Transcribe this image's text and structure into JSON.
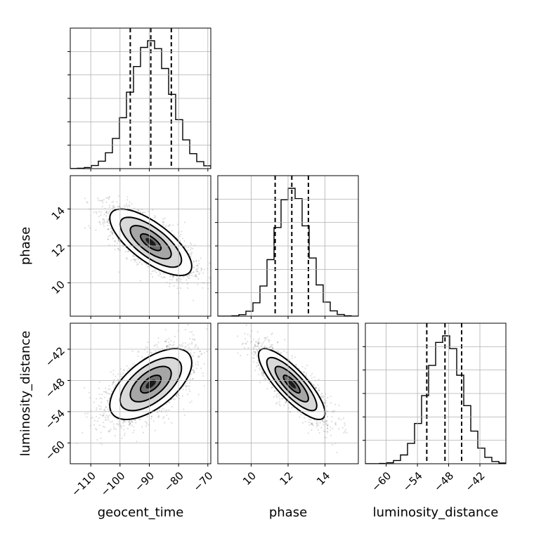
{
  "chart_data": {
    "type": "corner",
    "parameters": [
      "geocent_time",
      "phase",
      "luminosity_distance"
    ],
    "ranges": {
      "geocent_time": [
        -117,
        -69
      ],
      "phase": [
        8.2,
        15.8
      ],
      "luminosity_distance": [
        -64,
        -37
      ]
    },
    "ticks": {
      "geocent_time": [
        -110,
        -100,
        -90,
        -80,
        -70
      ],
      "phase": [
        10,
        12,
        14
      ],
      "luminosity_distance": [
        -60,
        -54,
        -48,
        -42
      ]
    },
    "tick_labels": {
      "geocent_time": [
        "−110",
        "−100",
        "−90",
        "−80",
        "−70"
      ],
      "phase": [
        "10",
        "12",
        "14"
      ],
      "luminosity_distance": [
        "−60",
        "−54",
        "−48",
        "−42"
      ]
    },
    "quantiles": {
      "geocent_time": [
        -96.5,
        -89.5,
        -82.5
      ],
      "phase": [
        11.3,
        12.2,
        13.1
      ],
      "luminosity_distance": [
        -52.2,
        -48.7,
        -45.5
      ]
    },
    "means": {
      "geocent_time": -89.5,
      "phase": 12.2,
      "luminosity_distance": -48.7
    },
    "std": {
      "geocent_time": 7.0,
      "phase": 0.9,
      "luminosity_distance": 3.4
    },
    "correlations": {
      "geocent_time|phase": -0.72,
      "geocent_time|luminosity_distance": 0.6,
      "phase|luminosity_distance": -0.82
    },
    "contour_levels_sigma": [
      0.5,
      1.0,
      1.5,
      2.0
    ],
    "grid": true
  }
}
